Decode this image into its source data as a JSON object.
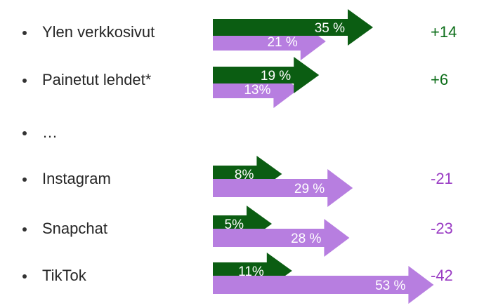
{
  "chart_data": {
    "type": "arrow-bar",
    "categories": [
      "Ylen verkkosivut",
      "Painetut lehdet*",
      "…",
      "Instagram",
      "Snapchat",
      "TikTok"
    ],
    "series": [
      {
        "color": "#0b5d12",
        "values": [
          35,
          19,
          null,
          8,
          5,
          11
        ],
        "value_labels": [
          "35 %",
          "19 %",
          null,
          "8%",
          "5%",
          "11%"
        ]
      },
      {
        "color": "#b77ee0",
        "values": [
          21,
          13,
          null,
          29,
          28,
          53
        ],
        "value_labels": [
          "21 %",
          "13%",
          null,
          "29 %",
          "28 %",
          "53 %"
        ]
      }
    ],
    "difference": {
      "values": [
        14,
        6,
        null,
        -21,
        -23,
        -42
      ],
      "value_labels": [
        "+14",
        "+6",
        null,
        "-21",
        "-23",
        "-42"
      ],
      "positive_color": "#0b6d18",
      "negative_color": "#9a3cc4"
    }
  }
}
